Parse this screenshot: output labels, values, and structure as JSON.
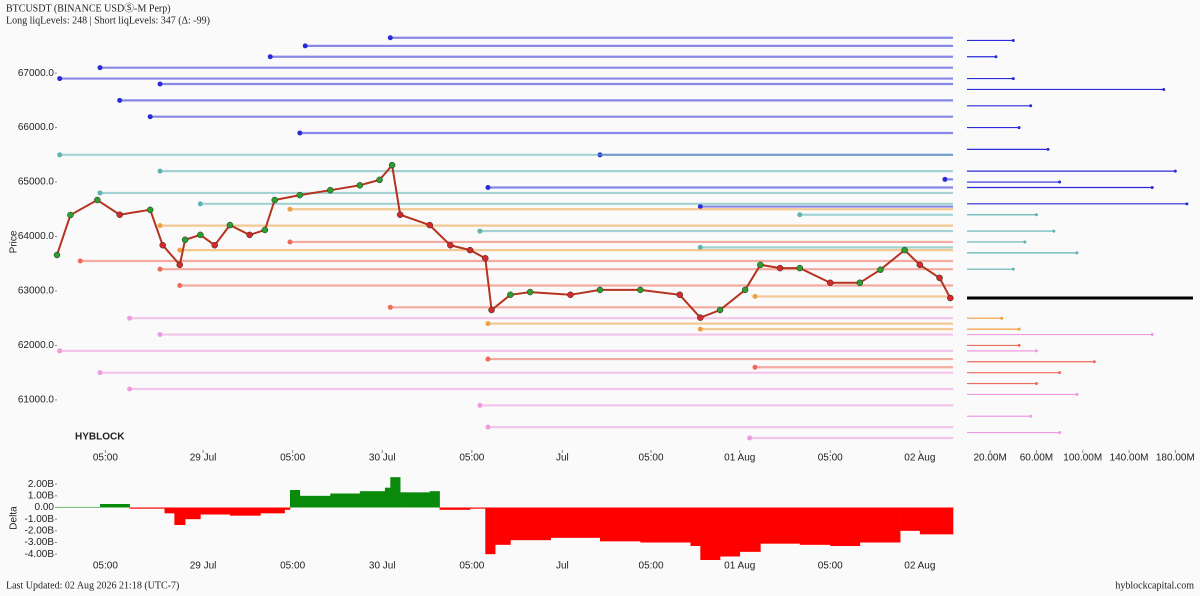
{
  "header": {
    "title": "BTCUSDT (BINANCE USDⓈ-M Perp)",
    "subtitle": "Long liqLevels: 248 | Short liqLevels: 347 (Δ: -99)"
  },
  "footer": {
    "updated": "Last Updated: 02 Aug 2026 21:18 (UTC-7)",
    "site": "hyblockcapital.com"
  },
  "chart_data": [
    {
      "type": "line",
      "ylabel": "Price",
      "watermark": "HYBLOCK",
      "xlim": [
        0,
        100
      ],
      "ylim": [
        60080,
        67700
      ],
      "xticks": [
        {
          "value": 5.4,
          "label": "05:00"
        },
        {
          "value": 16.3,
          "label": "29 Jul"
        },
        {
          "value": 26.3,
          "label": "05:00"
        },
        {
          "value": 36.3,
          "label": "30 Jul"
        },
        {
          "value": 46.3,
          "label": "05:00"
        },
        {
          "value": 56.4,
          "label": "Jul"
        },
        {
          "value": 66.3,
          "label": "05:00"
        },
        {
          "value": 76.2,
          "label": "01 Aug"
        },
        {
          "value": 86.3,
          "label": "05:00"
        },
        {
          "value": 96.3,
          "label": "02 Aug"
        }
      ],
      "yticks": [
        {
          "value": 61000,
          "label": "61000.0"
        },
        {
          "value": 62000,
          "label": "62000.0"
        },
        {
          "value": 63000,
          "label": "63000.0"
        },
        {
          "value": 64000,
          "label": "64000.0"
        },
        {
          "value": 65000,
          "label": "65000.0"
        },
        {
          "value": 66000,
          "label": "66000.0"
        },
        {
          "value": 67000,
          "label": "67000.0"
        }
      ],
      "x": [
        0,
        1.5,
        4.5,
        7,
        10.4,
        11.8,
        13.7,
        14.3,
        16,
        17.6,
        19.3,
        21.5,
        23.2,
        24.3,
        27.1,
        30.5,
        33.8,
        36,
        37.4,
        38.3,
        41.6,
        43.9,
        46.1,
        47.8,
        48.5,
        50.6,
        52.8,
        57.3,
        60.6,
        65.1,
        69.5,
        71.8,
        74,
        76.8,
        78.5,
        80.7,
        82.9,
        86.3,
        89.6,
        91.9,
        94.6,
        96.3,
        98.5,
        99.7
      ],
      "series": [
        {
          "color": "#b5331f",
          "values": [
            63660,
            64395,
            64670,
            64400,
            64490,
            63840,
            63480,
            63940,
            64030,
            63840,
            64210,
            64030,
            64120,
            64670,
            64760,
            64850,
            64940,
            65040,
            65310,
            64400,
            64210,
            63840,
            63750,
            63600,
            62650,
            62930,
            62980,
            62930,
            63020,
            63020,
            62930,
            62510,
            62650,
            63020,
            63480,
            63420,
            63420,
            63150,
            63150,
            63390,
            63750,
            63480,
            63240,
            62870
          ]
        }
      ],
      "levels": [
        {
          "color": "#2b2bd6",
          "start": [
            37.2,
            27.7,
            23.8,
            4.8,
            0.3,
            11.5,
            7,
            10.4,
            27.1,
            60.6,
            48.1,
            71.8,
            99.1
          ],
          "prices": [
            67650,
            67500,
            67300,
            67100,
            66900,
            66800,
            66500,
            66200,
            65900,
            65500,
            64900,
            64550,
            65050
          ]
        },
        {
          "color": "#5fb3b3",
          "start": [
            0.3,
            11.5,
            4.8,
            82.9,
            47.2,
            71.8,
            16
          ],
          "prices": [
            65500,
            65200,
            64800,
            64400,
            64100,
            63800,
            64600
          ]
        },
        {
          "color": "#f0a040",
          "start": [
            26,
            11.5,
            13.7,
            77.9,
            48.1,
            71.8
          ],
          "prices": [
            64500,
            64200,
            63750,
            62900,
            62400,
            62300
          ]
        },
        {
          "color": "#f06a5a",
          "start": [
            26,
            2.6,
            11.5,
            13.7,
            37.2,
            48.1,
            77.9
          ],
          "prices": [
            63900,
            63550,
            63400,
            63100,
            62700,
            61750,
            61600
          ]
        },
        {
          "color": "#f09ae0",
          "start": [
            8.1,
            11.5,
            0.3,
            4.8,
            8.1,
            47.2,
            48.1,
            77.3
          ],
          "prices": [
            62500,
            62200,
            61900,
            61500,
            61200,
            60900,
            60500,
            60300
          ]
        }
      ]
    },
    {
      "type": "hbar",
      "xlim": [
        0,
        197
      ],
      "xticks": [
        {
          "value": 20,
          "label": "20.00M"
        },
        {
          "value": 60,
          "label": "60.00M"
        },
        {
          "value": 100,
          "label": "100.00M"
        },
        {
          "value": 140,
          "label": "140.00M"
        },
        {
          "value": 180,
          "label": "180.00M"
        }
      ],
      "series": [
        {
          "color": "#2b2bd6",
          "prices": [
            67600,
            67300,
            66900,
            66700,
            66400,
            66000,
            65600,
            65200,
            64900,
            64600,
            65000
          ],
          "values": [
            40,
            25,
            40,
            170,
            55,
            45,
            70,
            180,
            160,
            190,
            80
          ]
        },
        {
          "color": "#5fb3b3",
          "prices": [
            64400,
            64100,
            63900,
            63700,
            63400
          ],
          "values": [
            60,
            75,
            50,
            95,
            40
          ]
        },
        {
          "color": "#f0a040",
          "prices": [
            62500,
            62300
          ],
          "values": [
            30,
            45
          ]
        },
        {
          "color": "#f06a5a",
          "prices": [
            62000,
            61700,
            61500,
            61300
          ],
          "values": [
            45,
            110,
            80,
            60
          ]
        },
        {
          "color": "#f09ae0",
          "prices": [
            62200,
            61900,
            61100,
            60700,
            60400
          ],
          "values": [
            160,
            60,
            95,
            55,
            80
          ]
        }
      ]
    },
    {
      "type": "step",
      "ylabel": "Delta",
      "ylim": [
        -4.5,
        2.7
      ],
      "pos_color": "#0a8a0a",
      "neg_color": "#ff0000",
      "yticks": [
        {
          "value": 2,
          "label": "2.00B"
        },
        {
          "value": 1,
          "label": "1.00B"
        },
        {
          "value": 0,
          "label": "0.00"
        },
        {
          "value": -1,
          "label": "-1.00B"
        },
        {
          "value": -2,
          "label": "-2.00B"
        },
        {
          "value": -3,
          "label": "-3.00B"
        },
        {
          "value": -4,
          "label": "-4.00B"
        }
      ],
      "x": [
        0,
        4.8,
        8.1,
        12,
        13.1,
        14.3,
        16,
        19.3,
        22.7,
        25.4,
        26,
        27.1,
        30.5,
        33.8,
        36.6,
        37.2,
        38.3,
        41.6,
        42.7,
        46.1,
        47.8,
        48.9,
        50.6,
        55.1,
        60.6,
        65.1,
        70.7,
        71.8,
        74,
        76.2,
        78.5,
        82.9,
        86.3,
        89.6,
        94.1,
        96.3
      ],
      "values": [
        0.05,
        0.3,
        -0.1,
        -0.5,
        -1.5,
        -1.0,
        -0.6,
        -0.7,
        -0.5,
        -0.2,
        1.5,
        1.0,
        1.2,
        1.4,
        1.7,
        2.6,
        1.3,
        1.4,
        -0.2,
        -0.1,
        -4.0,
        -3.2,
        -2.8,
        -2.6,
        -2.9,
        -3.0,
        -3.3,
        -4.5,
        -4.2,
        -3.8,
        -3.1,
        -3.2,
        -3.3,
        -3.0,
        -2.0,
        -2.3
      ]
    }
  ]
}
